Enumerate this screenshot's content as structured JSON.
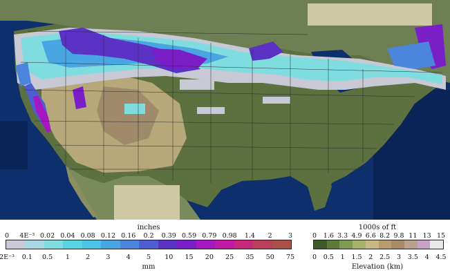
{
  "precip_legend": {
    "title_top": "inches",
    "title_bottom": "mm",
    "inch_labels": [
      "0",
      "4E⁻³",
      "0.02",
      "0.04",
      "0.08",
      "0.12",
      "0.16",
      "0.2",
      "0.39",
      "0.59",
      "0.79",
      "0.98",
      "1.4",
      "2",
      "3"
    ],
    "mm_labels": [
      "2E⁻³",
      "0.1",
      "0.5",
      "1",
      "2",
      "3",
      "4",
      "5",
      "10",
      "15",
      "20",
      "25",
      "35",
      "50",
      "75"
    ],
    "colors": [
      "#c9c9d6",
      "#a8d6e4",
      "#7fdde0",
      "#57d4e0",
      "#4cc2e6",
      "#4aa6e2",
      "#4c86dc",
      "#4e5ed2",
      "#5a33c4",
      "#7a1fc8",
      "#a418c0",
      "#c019a4",
      "#c8287c",
      "#b8405c",
      "#a8524a"
    ]
  },
  "elev_legend": {
    "title_top": "1000s of ft",
    "title_bottom": "Elevation (km)",
    "ft_labels": [
      "0",
      "1.6",
      "3.3",
      "4.9",
      "6.6",
      "8.2",
      "9.8",
      "11",
      "13",
      "15"
    ],
    "km_labels": [
      "0",
      "0.5",
      "1",
      "1.5",
      "2",
      "2.5",
      "3",
      "3.5",
      "4",
      "4.5"
    ],
    "colors": [
      "#3f5a2a",
      "#5c7a3a",
      "#7f9a52",
      "#a8b26a",
      "#c8b884",
      "#b89c70",
      "#a88a68",
      "#b8a28e",
      "#c8a0c8",
      "#e8e8e8"
    ]
  }
}
